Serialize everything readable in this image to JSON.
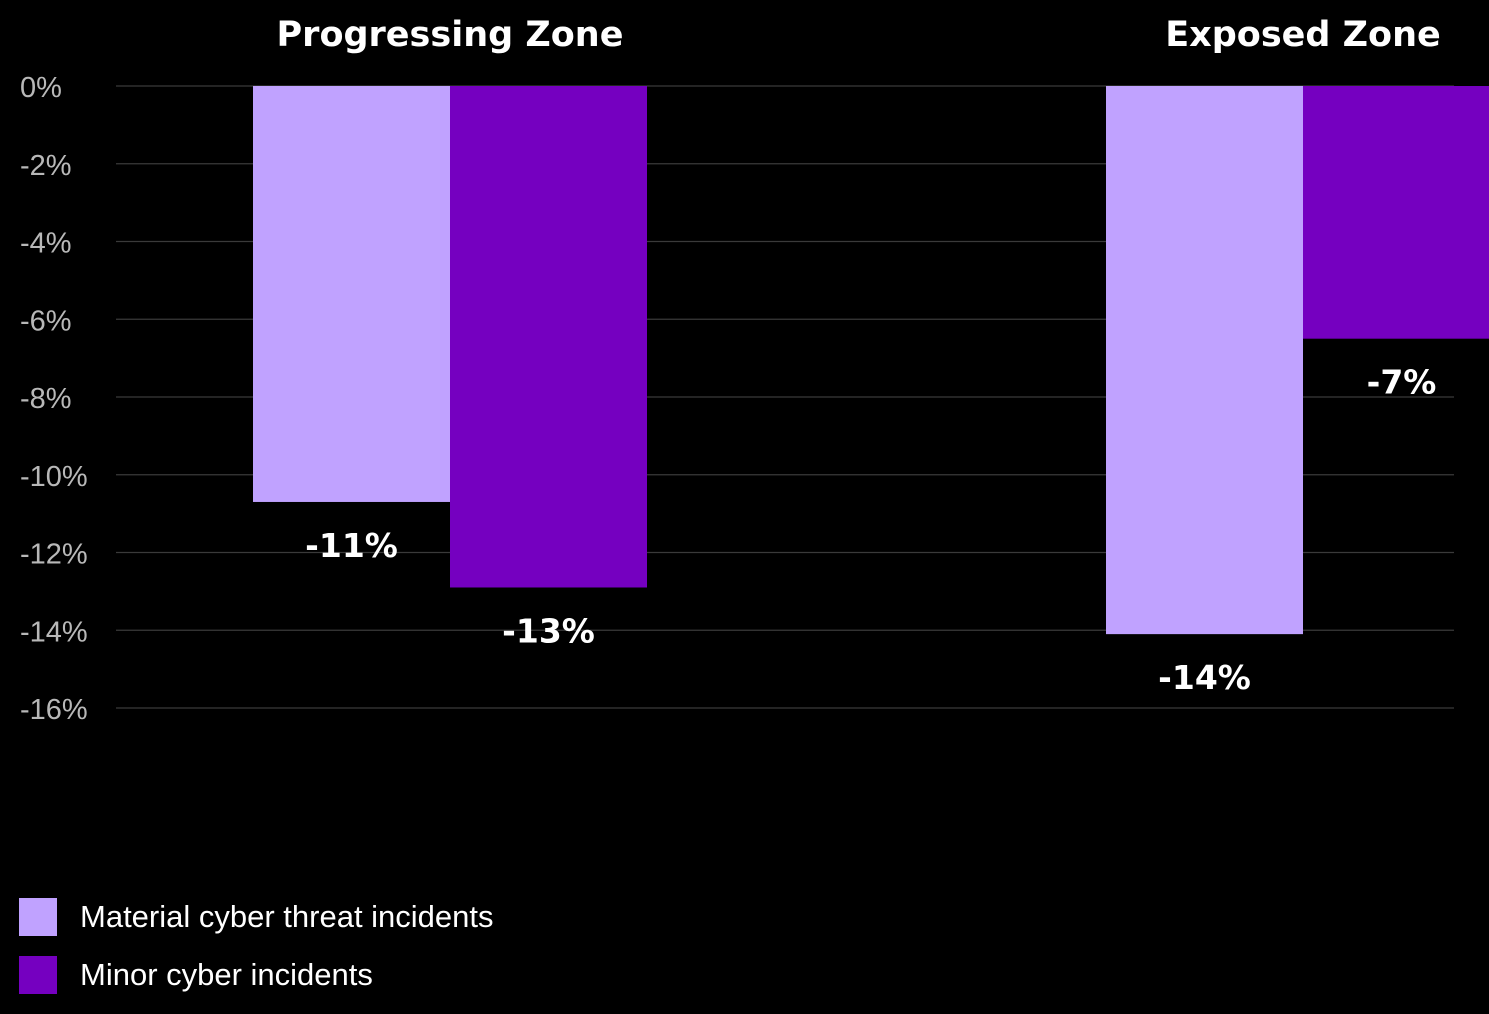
{
  "chart_data": {
    "type": "bar",
    "categories": [
      "Progressing Zone",
      "Exposed Zone"
    ],
    "series": [
      {
        "name": "Material cyber threat incidents",
        "values": [
          -10.7,
          -14.1
        ],
        "labels": [
          "-11%",
          "-14%"
        ],
        "color": "#c0a2ff"
      },
      {
        "name": "Minor cyber incidents",
        "values": [
          -12.9,
          -6.5
        ],
        "labels": [
          "-13%",
          "-7%"
        ],
        "color": "#7500c0"
      }
    ],
    "ylim": [
      -16,
      0
    ],
    "yticks": [
      0,
      -2,
      -4,
      -6,
      -8,
      -10,
      -12,
      -14,
      -16
    ],
    "ytick_labels": [
      "0%",
      "-2%",
      "-4%",
      "-6%",
      "-8%",
      "-10%",
      "-12%",
      "-14%",
      "-16%"
    ],
    "grid": true,
    "legend_position": "bottom-left",
    "title": "",
    "xlabel": "",
    "ylabel": ""
  }
}
